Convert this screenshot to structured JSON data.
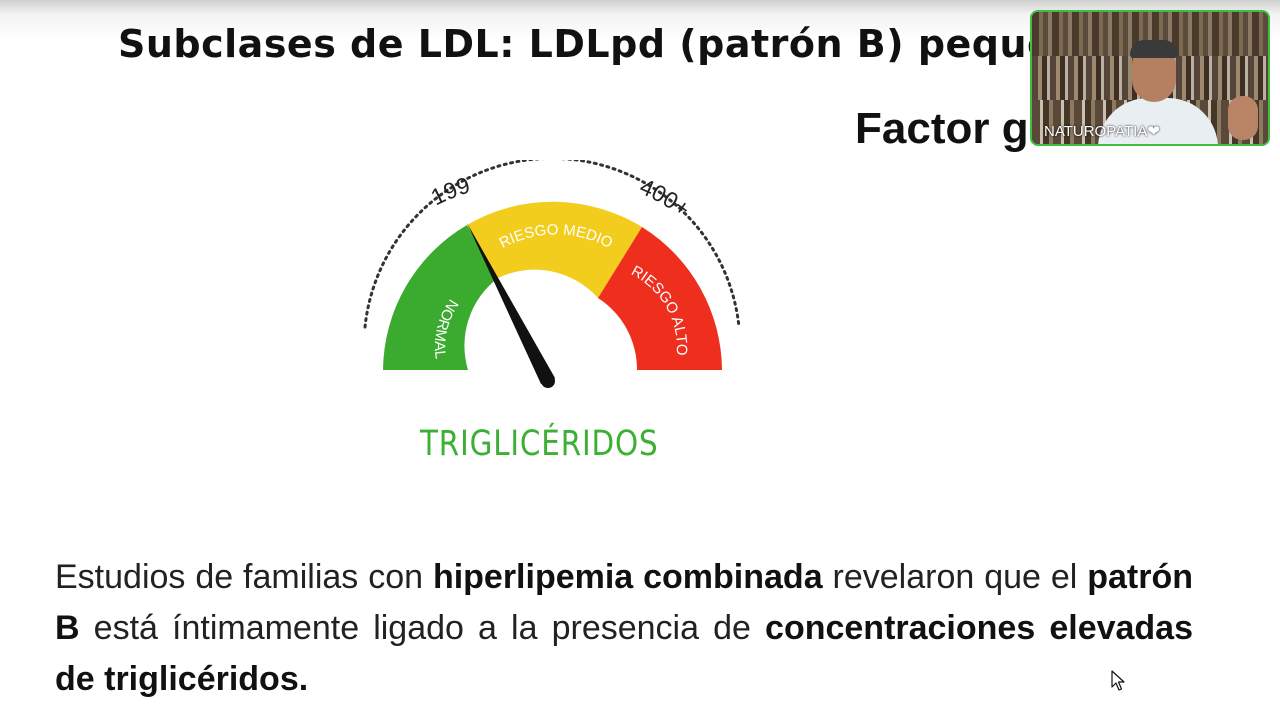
{
  "slide": {
    "title": "Subclases de LDL: LDLpd (patrón B) pequeñ",
    "subtitle": "Factor g"
  },
  "gauge": {
    "title": "TRIGLICÉRIDOS",
    "tick_199": "199",
    "tick_400": "400+",
    "zones": [
      {
        "label": "NORMAL",
        "color": "#3aab2f"
      },
      {
        "label": "RIESGO MEDIO",
        "color": "#f3cd1e"
      },
      {
        "label": "RIESGO ALTO",
        "color": "#ee2f1e"
      }
    ],
    "title_color": "#3cb034"
  },
  "paragraph": {
    "p1": "Estudios de familias con ",
    "b1": "hiperlipemia combinada",
    "p2": " revelaron que el ",
    "b2": "patrón B",
    "p3": " está íntimamente ligado a la presencia de ",
    "b3": "concentraciones elevadas de triglicéridos."
  },
  "webcam": {
    "label": "NATUROPATIA❤",
    "border_color": "#3fbf3f"
  },
  "icons": {
    "cursor": "mouse-pointer-icon"
  }
}
